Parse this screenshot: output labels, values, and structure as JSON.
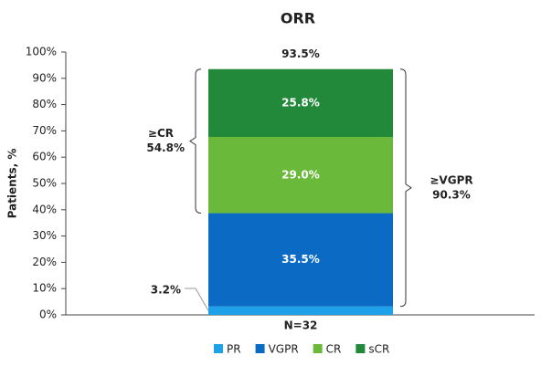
{
  "chart_data": {
    "type": "stacked_bar",
    "title": "ORR",
    "y_label": "Patients, %",
    "categories": [
      "N=32"
    ],
    "series": [
      {
        "name": "PR",
        "color": "#1ea1e8",
        "values": [
          3.2
        ],
        "value_labels": [
          "3.2%"
        ]
      },
      {
        "name": "VGPR",
        "color": "#0b6bc4",
        "values": [
          35.5
        ],
        "value_labels": [
          "35.5%"
        ]
      },
      {
        "name": "CR",
        "color": "#6bb93a",
        "values": [
          29.0
        ],
        "value_labels": [
          "29.0%"
        ]
      },
      {
        "name": "sCR",
        "color": "#22893a",
        "values": [
          25.8
        ],
        "value_labels": [
          "25.8%"
        ]
      }
    ],
    "total": 93.5,
    "total_label": "93.5%",
    "annotations": [
      {
        "text": "≥CR",
        "value": 54.8,
        "value_label": "54.8%",
        "side": "left"
      },
      {
        "text": "≥VGPR",
        "value": 90.3,
        "value_label": "90.3%",
        "side": "right"
      }
    ],
    "ylim": [
      0,
      100
    ],
    "yticks": [
      {
        "value": 0,
        "label": "0%"
      },
      {
        "value": 10,
        "label": "10%"
      },
      {
        "value": 20,
        "label": "20%"
      },
      {
        "value": 30,
        "label": "30%"
      },
      {
        "value": 40,
        "label": "40%"
      },
      {
        "value": 50,
        "label": "50%"
      },
      {
        "value": 60,
        "label": "60%"
      },
      {
        "value": 70,
        "label": "70%"
      },
      {
        "value": 80,
        "label": "80%"
      },
      {
        "value": 90,
        "label": "90%"
      },
      {
        "value": 100,
        "label": "100%"
      }
    ],
    "legend": "bottom"
  }
}
